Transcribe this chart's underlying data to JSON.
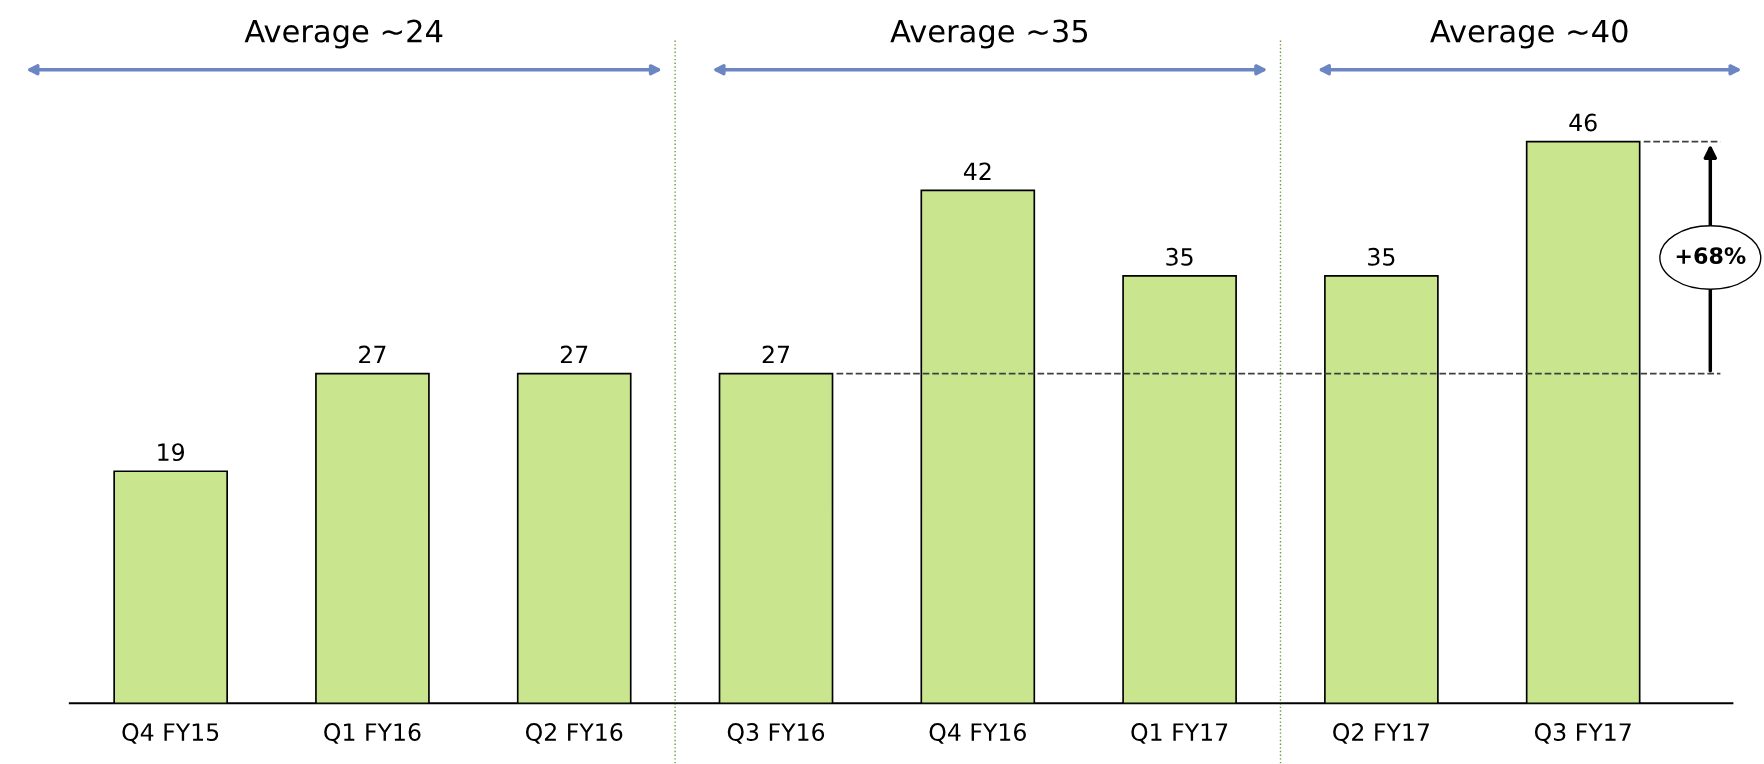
{
  "chart_data": {
    "type": "bar",
    "categories": [
      "Q4 FY15",
      "Q1 FY16",
      "Q2 FY16",
      "Q3 FY16",
      "Q4 FY16",
      "Q1 FY17",
      "Q2 FY17",
      "Q3 FY17"
    ],
    "values": [
      19,
      27,
      27,
      27,
      42,
      35,
      35,
      46
    ],
    "color": "#c9e68f",
    "data_labels": true,
    "ref_lines": [
      {
        "axis": "y",
        "value": 27,
        "line_style": "dashed",
        "color": "#404040"
      }
    ],
    "annotations": [
      "Average ~24",
      "Average ~35",
      "Average ~40",
      "+68%"
    ],
    "grid": false,
    "legend": false
  }
}
